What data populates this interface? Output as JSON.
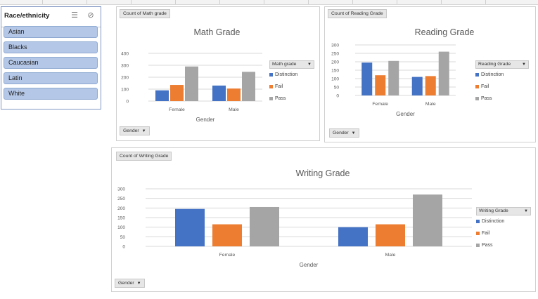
{
  "slicer": {
    "title": "Race/ethnicity",
    "multiselect_icon": "multi-select-icon",
    "clear_filter_icon": "clear-filter-icon",
    "items": [
      "Asian",
      "Blacks",
      "Caucasian",
      "Latin",
      "White"
    ]
  },
  "colors": {
    "Distinction": "#4472c4",
    "Fail": "#ed7d31",
    "Pass": "#a5a5a5"
  },
  "chart_data": [
    {
      "type": "bar",
      "tag": "Count of Math grade",
      "title": "Math Grade",
      "xlabel": "Gender",
      "categories": [
        "Female",
        "Male"
      ],
      "series": [
        {
          "name": "Distinction",
          "values": [
            90,
            130
          ]
        },
        {
          "name": "Fail",
          "values": [
            135,
            105
          ]
        },
        {
          "name": "Pass",
          "values": [
            290,
            245
          ]
        }
      ],
      "yticks": [
        0,
        100,
        200,
        300,
        400
      ],
      "ylim": [
        0,
        400
      ],
      "grid": true,
      "legend_title": "Math grade",
      "legend_position": "right",
      "filter_label": "Gender"
    },
    {
      "type": "bar",
      "tag": "Count of Reading Grade",
      "title": "Reading Grade",
      "xlabel": "Gender",
      "categories": [
        "Female",
        "Male"
      ],
      "series": [
        {
          "name": "Distinction",
          "values": [
            195,
            110
          ]
        },
        {
          "name": "Fail",
          "values": [
            120,
            115
          ]
        },
        {
          "name": "Pass",
          "values": [
            205,
            260
          ]
        }
      ],
      "yticks": [
        0,
        50,
        100,
        150,
        200,
        250,
        300
      ],
      "ylim": [
        0,
        300
      ],
      "grid": true,
      "legend_title": "Reading Grade",
      "legend_position": "right",
      "filter_label": "Gender"
    },
    {
      "type": "bar",
      "tag": "Count of Writing Grade",
      "title": "Writing Grade",
      "xlabel": "Gender",
      "categories": [
        "Female",
        "Male"
      ],
      "series": [
        {
          "name": "Distinction",
          "values": [
            195,
            100
          ]
        },
        {
          "name": "Fail",
          "values": [
            115,
            115
          ]
        },
        {
          "name": "Pass",
          "values": [
            205,
            270
          ]
        }
      ],
      "yticks": [
        0,
        50,
        100,
        150,
        200,
        250,
        300
      ],
      "ylim": [
        0,
        300
      ],
      "grid": true,
      "legend_title": "Writing Grade",
      "legend_position": "right",
      "filter_label": "Gender"
    }
  ]
}
